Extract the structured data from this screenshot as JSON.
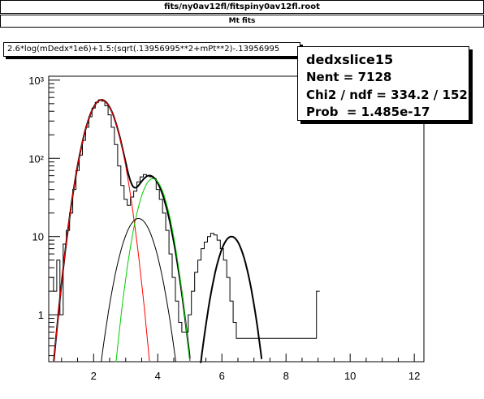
{
  "header": {
    "file_title": "fits/ny0av12fl/fitspiny0av12fl.root",
    "subtitle": "Mt fits"
  },
  "formula_label": "2.6*log(mDedx*1e6)+1.5:(sqrt(.13956995**2+mPt**2)-.13956995",
  "stats": {
    "name": "dedxslice15",
    "nent": "Nent = 7128",
    "chi2": "Chi2 / ndf = 334.2 / 152",
    "prob": "Prob  = 1.485e-17"
  },
  "chart_data": {
    "type": "line",
    "xlim": [
      0.6,
      12.3
    ],
    "ylim_log10": [
      -0.6,
      3.05
    ],
    "y_scale": "log",
    "xticks": [
      "2",
      "4",
      "6",
      "8",
      "10",
      "12"
    ],
    "yticks": [
      "1",
      "10",
      "10²",
      "10³"
    ],
    "grid": false,
    "histogram": {
      "x": [
        0.7,
        0.8,
        0.9,
        1.0,
        1.1,
        1.2,
        1.3,
        1.4,
        1.5,
        1.6,
        1.7,
        1.8,
        1.9,
        2.0,
        2.1,
        2.2,
        2.3,
        2.4,
        2.5,
        2.6,
        2.7,
        2.8,
        2.9,
        3.0,
        3.1,
        3.2,
        3.3,
        3.4,
        3.5,
        3.6,
        3.7,
        3.8,
        3.9,
        4.0,
        4.1,
        4.2,
        4.3,
        4.4,
        4.5,
        4.6,
        4.7,
        4.8,
        4.9,
        5.0,
        5.1,
        5.2,
        5.3,
        5.4,
        5.5,
        5.6,
        5.7,
        5.8,
        5.9,
        6.0,
        6.1,
        6.2,
        6.3,
        6.4,
        6.5,
        6.6,
        6.7,
        6.8,
        6.9,
        7.0,
        7.1,
        7.2,
        7.3,
        7.4,
        7.5,
        7.6,
        8.9,
        9.0
      ],
      "y": [
        3,
        2,
        5,
        1,
        8,
        12,
        20,
        40,
        70,
        110,
        170,
        250,
        340,
        440,
        520,
        560,
        540,
        470,
        360,
        250,
        150,
        80,
        45,
        30,
        25,
        32,
        38,
        50,
        58,
        62,
        60,
        58,
        55,
        40,
        30,
        20,
        12,
        6,
        3,
        1.5,
        0.8,
        0.6,
        0.6,
        1,
        2,
        3.5,
        5,
        7,
        8.5,
        10,
        11,
        10.5,
        9,
        7,
        5,
        3,
        1.5,
        0.8,
        0.5,
        0.5,
        0.5,
        0.5,
        0.5,
        0.5,
        0.5,
        0.5,
        0.5,
        0.5,
        0.5,
        0.5,
        0.5,
        2
      ]
    },
    "series": [
      {
        "color": "#000000",
        "width": 2,
        "params": [
          [
            560,
            2.25,
            0.38
          ],
          [
            60,
            3.75,
            0.38
          ],
          [
            10,
            6.3,
            0.35
          ]
        ]
      },
      {
        "color": "#ff0000",
        "width": 1,
        "params": [
          [
            560,
            2.25,
            0.38
          ]
        ]
      },
      {
        "color": "#00cc00",
        "width": 1,
        "params": [
          [
            55,
            3.85,
            0.35
          ]
        ]
      },
      {
        "color": "#000000",
        "width": 1,
        "params": [
          [
            17,
            3.4,
            0.4
          ]
        ]
      }
    ]
  }
}
